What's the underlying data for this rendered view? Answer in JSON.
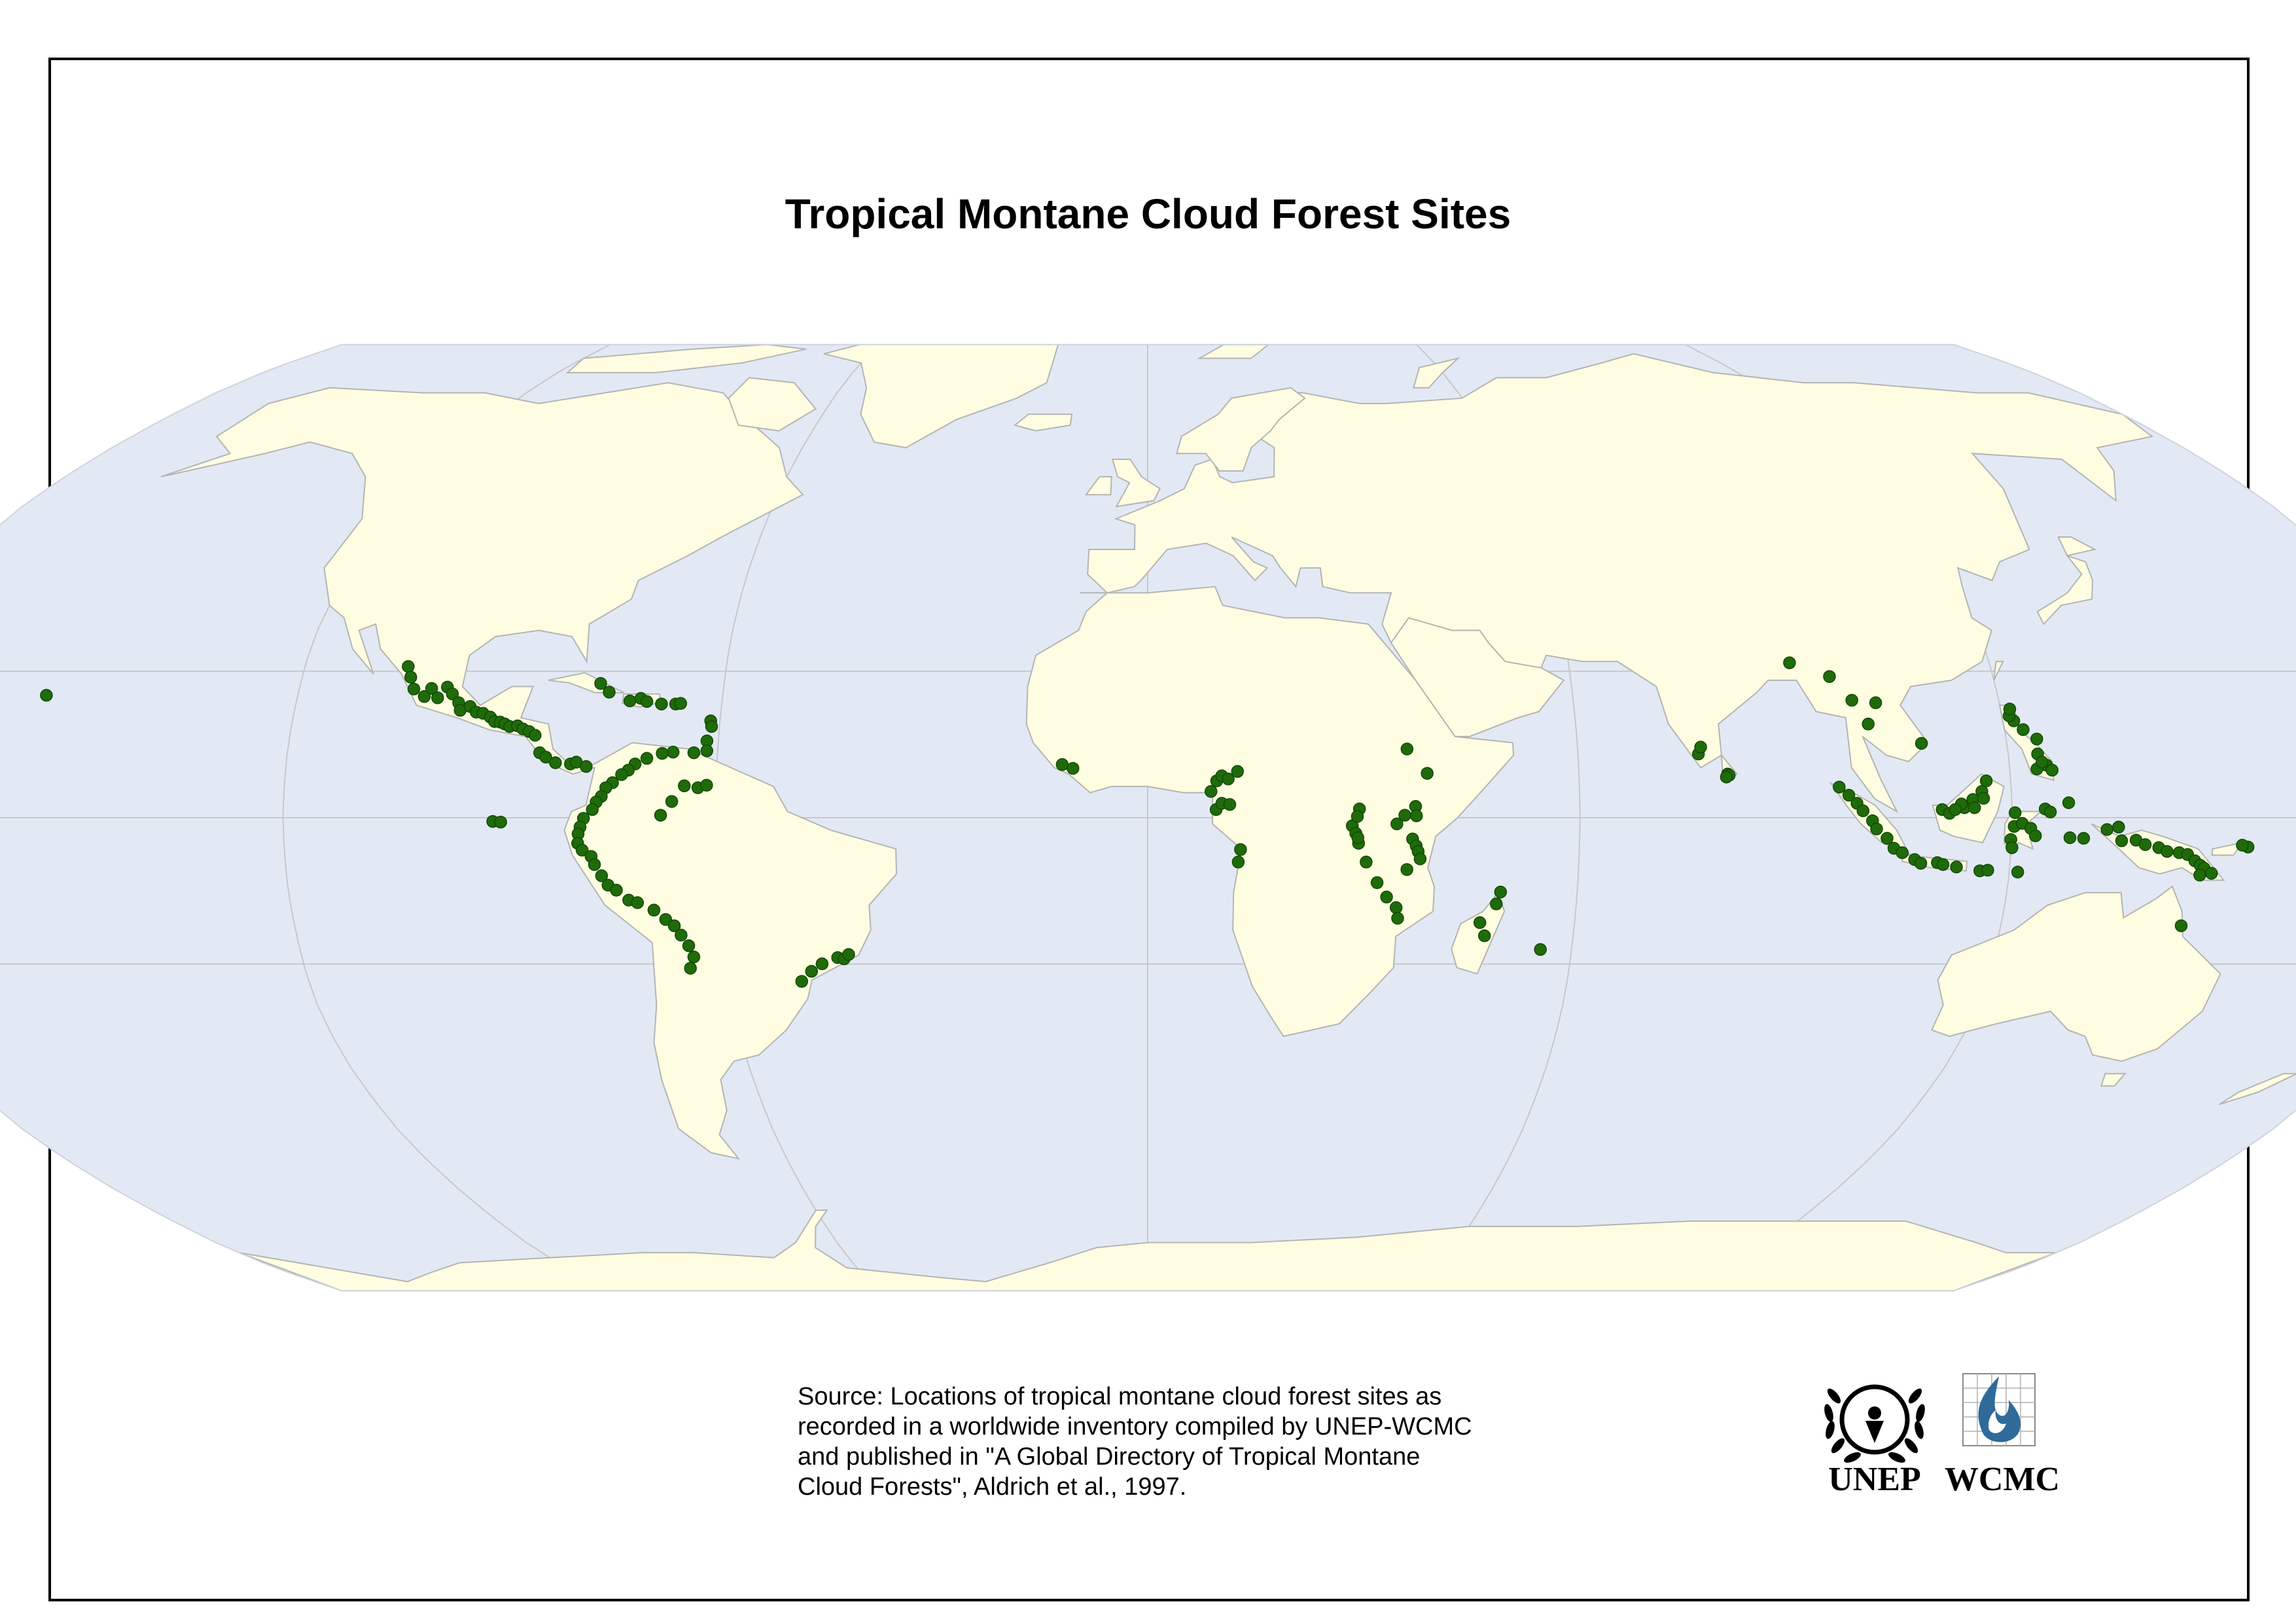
{
  "map": {
    "title": "Tropical Montane Cloud Forest Sites",
    "projection": "robinson",
    "colors": {
      "ocean": "#e3e9f4",
      "land": "#fffde1",
      "border": "#b4b4b4",
      "site": "#1f6b0a",
      "graticule": "#c8c8c8"
    },
    "sites": [
      [
        -155.5,
        19.6
      ],
      [
        -105.3,
        24.2
      ],
      [
        -104.6,
        22.5
      ],
      [
        -103.8,
        20.6
      ],
      [
        -102.1,
        19.4
      ],
      [
        -101.3,
        20.7
      ],
      [
        -100.2,
        19.2
      ],
      [
        -99.1,
        20.9
      ],
      [
        -98.2,
        19.8
      ],
      [
        -97.1,
        18.4
      ],
      [
        -96.7,
        17.2
      ],
      [
        -95.4,
        17.8
      ],
      [
        -94.4,
        16.9
      ],
      [
        -93.4,
        16.7
      ],
      [
        -92.3,
        16.1
      ],
      [
        -91.6,
        15.4
      ],
      [
        -90.8,
        15.3
      ],
      [
        -90.1,
        15.0
      ],
      [
        -89.4,
        14.6
      ],
      [
        -88.3,
        14.7
      ],
      [
        -87.5,
        14.2
      ],
      [
        -86.6,
        13.8
      ],
      [
        -85.7,
        13.2
      ],
      [
        -84.8,
        10.4
      ],
      [
        -83.9,
        9.7
      ],
      [
        -82.5,
        8.8
      ],
      [
        -80.4,
        8.6
      ],
      [
        -79.6,
        8.9
      ],
      [
        -78.2,
        8.2
      ],
      [
        -77.5,
        21.5
      ],
      [
        -76.1,
        20.1
      ],
      [
        -73.0,
        18.7
      ],
      [
        -71.5,
        19.1
      ],
      [
        -70.6,
        18.6
      ],
      [
        -68.5,
        18.2
      ],
      [
        -66.5,
        18.2
      ],
      [
        -65.8,
        18.3
      ],
      [
        -61.3,
        15.5
      ],
      [
        -61.1,
        14.6
      ],
      [
        -61.6,
        12.3
      ],
      [
        -61.5,
        10.7
      ],
      [
        -63.3,
        10.4
      ],
      [
        -66.2,
        10.5
      ],
      [
        -67.7,
        10.3
      ],
      [
        -69.8,
        9.5
      ],
      [
        -71.4,
        8.6
      ],
      [
        -72.3,
        7.6
      ],
      [
        -73.2,
        6.9
      ],
      [
        -74.4,
        5.6
      ],
      [
        -75.3,
        4.8
      ],
      [
        -75.9,
        3.4
      ],
      [
        -76.6,
        2.5
      ],
      [
        -77.1,
        1.3
      ],
      [
        -78.3,
        -0.1
      ],
      [
        -78.8,
        -1.5
      ],
      [
        -79.1,
        -2.6
      ],
      [
        -79.2,
        -4.1
      ],
      [
        -78.6,
        -5.2
      ],
      [
        -77.4,
        -6.2
      ],
      [
        -77.0,
        -7.5
      ],
      [
        -76.1,
        -9.3
      ],
      [
        -75.3,
        -10.8
      ],
      [
        -74.2,
        -11.6
      ],
      [
        -72.6,
        -13.2
      ],
      [
        -71.4,
        -13.6
      ],
      [
        -69.2,
        -14.8
      ],
      [
        -67.7,
        -16.3
      ],
      [
        -66.6,
        -17.3
      ],
      [
        -65.8,
        -18.8
      ],
      [
        -64.9,
        -20.5
      ],
      [
        -64.4,
        -22.3
      ],
      [
        -65.1,
        -24.1
      ],
      [
        -67.6,
        0.4
      ],
      [
        -66.1,
        2.6
      ],
      [
        -64.4,
        5.1
      ],
      [
        -62.5,
        4.8
      ],
      [
        -61.3,
        5.2
      ],
      [
        -90.9,
        -0.6
      ],
      [
        -89.8,
        -0.7
      ],
      [
        -44.0,
        -22.4
      ],
      [
        -43.1,
        -22.6
      ],
      [
        -42.4,
        -21.9
      ],
      [
        -46.3,
        -23.4
      ],
      [
        -47.9,
        -24.6
      ],
      [
        -49.5,
        -26.2
      ],
      [
        -11.9,
        8.5
      ],
      [
        -10.4,
        7.9
      ],
      [
        8.8,
        4.2
      ],
      [
        9.6,
        5.9
      ],
      [
        10.3,
        6.7
      ],
      [
        11.2,
        6.2
      ],
      [
        12.5,
        7.4
      ],
      [
        9.5,
        1.3
      ],
      [
        10.3,
        2.3
      ],
      [
        11.4,
        2.1
      ],
      [
        12.9,
        -5.1
      ],
      [
        12.6,
        -7.1
      ],
      [
        28.4,
        -1.3
      ],
      [
        28.9,
        -2.5
      ],
      [
        29.3,
        -4.1
      ],
      [
        29.4,
        1.4
      ],
      [
        29.1,
        0.2
      ],
      [
        29.2,
        -3.2
      ],
      [
        30.4,
        -7.1
      ],
      [
        32.0,
        -10.4
      ],
      [
        33.4,
        -12.7
      ],
      [
        34.8,
        -14.4
      ],
      [
        35.1,
        -16.1
      ],
      [
        36.8,
        -3.4
      ],
      [
        37.3,
        -4.5
      ],
      [
        37.6,
        -5.4
      ],
      [
        37.9,
        -6.6
      ],
      [
        36.1,
        -8.3
      ],
      [
        34.6,
        -1.0
      ],
      [
        35.7,
        0.4
      ],
      [
        37.2,
        1.8
      ],
      [
        37.3,
        0.3
      ],
      [
        38.9,
        7.1
      ],
      [
        36.2,
        11.0
      ],
      [
        46.7,
        -16.8
      ],
      [
        47.5,
        -18.9
      ],
      [
        48.8,
        -13.8
      ],
      [
        49.3,
        -11.9
      ],
      [
        55.6,
        -21.1
      ],
      [
        76.8,
        10.2
      ],
      [
        77.2,
        11.3
      ],
      [
        80.7,
        7.0
      ],
      [
        80.9,
        6.8
      ],
      [
        80.5,
        6.5
      ],
      [
        91.5,
        24.8
      ],
      [
        96.8,
        22.6
      ],
      [
        99.3,
        18.8
      ],
      [
        101.0,
        15.0
      ],
      [
        102.6,
        18.4
      ],
      [
        108.1,
        11.9
      ],
      [
        96.1,
        4.9
      ],
      [
        97.4,
        3.6
      ],
      [
        98.5,
        2.3
      ],
      [
        99.3,
        1.1
      ],
      [
        100.6,
        -0.5
      ],
      [
        101.2,
        -1.8
      ],
      [
        102.7,
        -3.3
      ],
      [
        103.7,
        -4.9
      ],
      [
        104.9,
        -5.6
      ],
      [
        106.7,
        -6.7
      ],
      [
        107.6,
        -7.3
      ],
      [
        109.9,
        -7.2
      ],
      [
        110.7,
        -7.5
      ],
      [
        112.6,
        -7.9
      ],
      [
        115.9,
        -8.5
      ],
      [
        117.0,
        -8.4
      ],
      [
        121.2,
        -8.7
      ],
      [
        110.3,
        1.3
      ],
      [
        111.3,
        0.7
      ],
      [
        113.4,
        1.6
      ],
      [
        114.6,
        2.9
      ],
      [
        115.9,
        4.2
      ],
      [
        116.6,
        5.9
      ],
      [
        116.1,
        3.1
      ],
      [
        114.8,
        1.6
      ],
      [
        113.0,
        2.2
      ],
      [
        112.1,
        1.3
      ],
      [
        119.9,
        -3.5
      ],
      [
        120.3,
        -1.4
      ],
      [
        121.4,
        -0.9
      ],
      [
        122.6,
        -1.7
      ],
      [
        120.4,
        0.8
      ],
      [
        124.6,
        1.4
      ],
      [
        125.3,
        0.9
      ],
      [
        123.3,
        -2.9
      ],
      [
        120.1,
        -4.8
      ],
      [
        121.5,
        15.5
      ],
      [
        121.0,
        16.3
      ],
      [
        121.3,
        17.4
      ],
      [
        122.6,
        14.1
      ],
      [
        124.3,
        12.6
      ],
      [
        124.1,
        10.2
      ],
      [
        125.2,
        8.4
      ],
      [
        125.9,
        7.6
      ],
      [
        123.8,
        7.8
      ],
      [
        124.6,
        8.9
      ],
      [
        128.1,
        -3.2
      ],
      [
        130.0,
        -3.3
      ],
      [
        133.2,
        -1.9
      ],
      [
        134.8,
        -1.5
      ],
      [
        135.3,
        -3.7
      ],
      [
        137.3,
        -3.6
      ],
      [
        138.6,
        -4.3
      ],
      [
        140.5,
        -4.8
      ],
      [
        141.7,
        -5.4
      ],
      [
        143.4,
        -5.6
      ],
      [
        144.6,
        -5.9
      ],
      [
        145.7,
        -6.9
      ],
      [
        146.5,
        -7.6
      ],
      [
        147.1,
        -8.1
      ],
      [
        148.2,
        -8.9
      ],
      [
        146.6,
        -9.2
      ],
      [
        152.9,
        -4.7
      ],
      [
        152.1,
        -4.4
      ],
      [
        145.4,
        -17.3
      ],
      [
        127.9,
        2.4
      ]
    ]
  },
  "source": {
    "lines": [
      "Source: Locations of tropical montane cloud forest sites as",
      "recorded in a worldwide inventory compiled by UNEP-WCMC",
      "and published in \"A Global Directory of Tropical Montane",
      "Cloud Forests\", Aldrich et al., 1997."
    ]
  },
  "logos": {
    "unep": "UNEP",
    "wcmc": "WCMC"
  }
}
